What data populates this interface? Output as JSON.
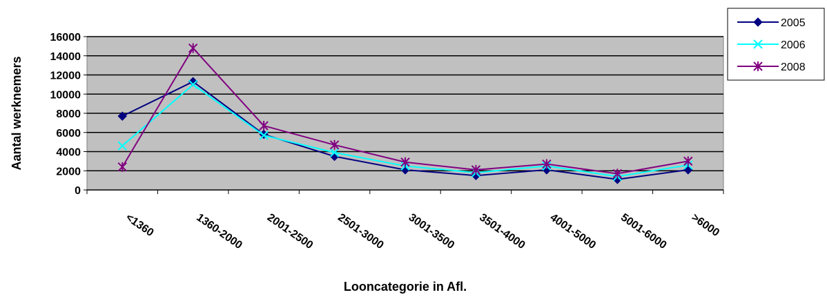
{
  "chart_data": {
    "type": "line",
    "categories": [
      "<1360",
      "1360-2000",
      "2001-2500",
      "2501-3000",
      "3001-3500",
      "3501-4000",
      "4001-5000",
      "5001-6000",
      ">6000"
    ],
    "series": [
      {
        "name": "2005",
        "values": [
          7700,
          11300,
          5800,
          3500,
          2100,
          1500,
          2100,
          1100,
          2100
        ],
        "color": "#000080",
        "marker": "diamond"
      },
      {
        "name": "2006",
        "values": [
          4600,
          11000,
          5700,
          3900,
          2500,
          1800,
          2500,
          1400,
          2600
        ],
        "color": "#00FFFF",
        "marker": "x"
      },
      {
        "name": "2008",
        "values": [
          2400,
          14800,
          6700,
          4700,
          2900,
          2100,
          2700,
          1700,
          3000
        ],
        "color": "#800080",
        "marker": "star"
      }
    ],
    "xlabel": "Looncategorie in Afl.",
    "ylabel": "Aantal werknemers",
    "ylim": [
      0,
      16000
    ],
    "yticks": [
      "0",
      "2000",
      "4000",
      "6000",
      "8000",
      "10000",
      "12000",
      "14000",
      "16000"
    ],
    "grid": true,
    "plot_background": "#C0C0C0",
    "legend_position": "top-right"
  }
}
